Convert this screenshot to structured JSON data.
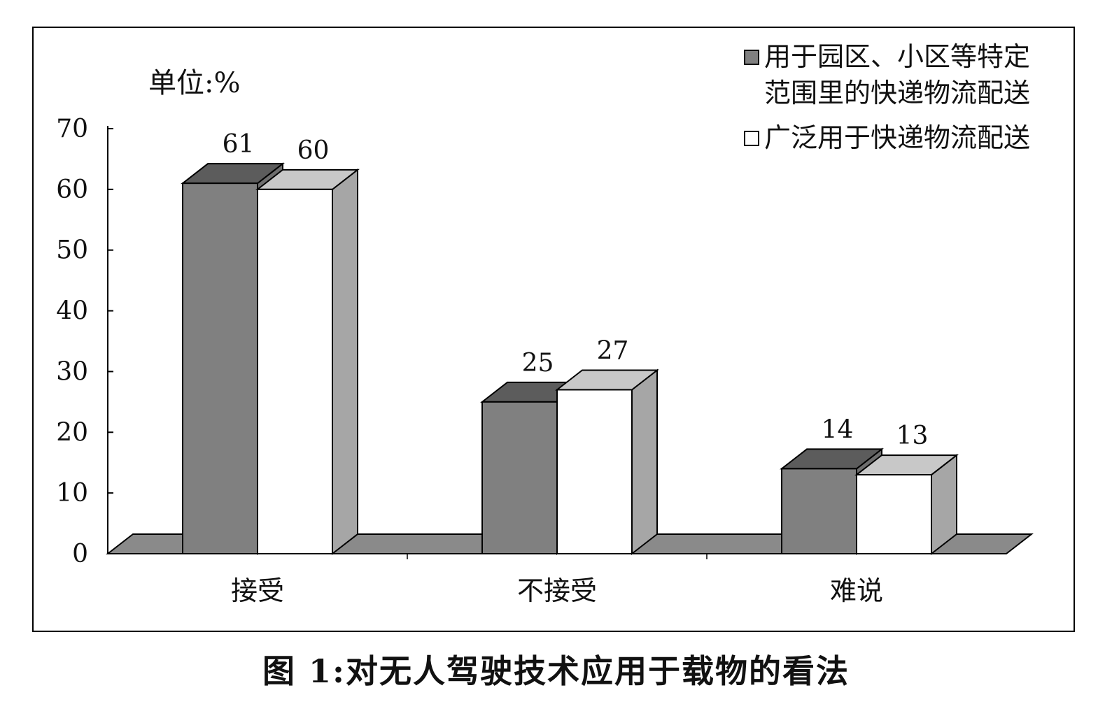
{
  "caption": "图 1:对无人驾驶技术应用于载物的看法",
  "chart_data": {
    "type": "bar",
    "unit_label": "单位:%",
    "categories": [
      "接受",
      "不接受",
      "难说"
    ],
    "series": [
      {
        "name": "用于园区、小区等特定范围里的快递物流配送",
        "name_lines": [
          "用于园区、小区等特定",
          "范围里的快递物流配送"
        ],
        "values": [
          61,
          25,
          14
        ],
        "color": "#808080",
        "top_color": "#5c5c5c",
        "side_color": "#6e6e6e"
      },
      {
        "name": "广泛用于快递物流配送",
        "name_lines": [
          "广泛用于快递物流配送"
        ],
        "values": [
          60,
          27,
          13
        ],
        "color": "#ffffff",
        "top_color": "#c8c8c8",
        "side_color": "#a6a6a6"
      }
    ],
    "ylim": [
      0,
      70
    ],
    "yticks": [
      0,
      10,
      20,
      30,
      40,
      50,
      60,
      70
    ],
    "floor_color": "#8a8a8a",
    "legend_position": "top-right",
    "grid": false
  }
}
